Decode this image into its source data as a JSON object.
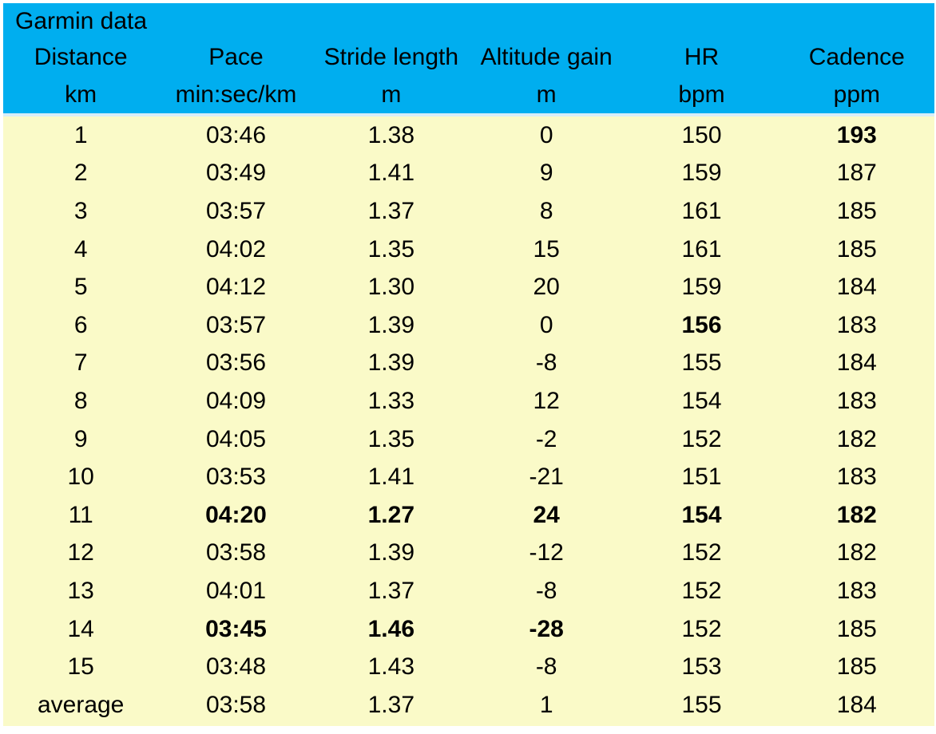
{
  "colors": {
    "header_bg": "#00AEEF",
    "body_bg": "#FAFAC8",
    "text": "#000000",
    "page_bg": "#FFFFFF"
  },
  "chart_data": {
    "type": "table",
    "title": "Garmin data",
    "columns": [
      "Distance",
      "Pace",
      "Stride length",
      "Altitude gain",
      "HR",
      "Cadence"
    ],
    "units": [
      "km",
      "min:sec/km",
      "m",
      "m",
      "bpm",
      "ppm"
    ],
    "rows": [
      {
        "cells": [
          "1",
          "03:46",
          "1.38",
          "0",
          "150",
          "193"
        ],
        "bold": [
          false,
          false,
          false,
          false,
          false,
          true
        ]
      },
      {
        "cells": [
          "2",
          "03:49",
          "1.41",
          "9",
          "159",
          "187"
        ],
        "bold": [
          false,
          false,
          false,
          false,
          false,
          false
        ]
      },
      {
        "cells": [
          "3",
          "03:57",
          "1.37",
          "8",
          "161",
          "185"
        ],
        "bold": [
          false,
          false,
          false,
          false,
          false,
          false
        ]
      },
      {
        "cells": [
          "4",
          "04:02",
          "1.35",
          "15",
          "161",
          "185"
        ],
        "bold": [
          false,
          false,
          false,
          false,
          false,
          false
        ]
      },
      {
        "cells": [
          "5",
          "04:12",
          "1.30",
          "20",
          "159",
          "184"
        ],
        "bold": [
          false,
          false,
          false,
          false,
          false,
          false
        ]
      },
      {
        "cells": [
          "6",
          "03:57",
          "1.39",
          "0",
          "156",
          "183"
        ],
        "bold": [
          false,
          false,
          false,
          false,
          true,
          false
        ]
      },
      {
        "cells": [
          "7",
          "03:56",
          "1.39",
          "-8",
          "155",
          "184"
        ],
        "bold": [
          false,
          false,
          false,
          false,
          false,
          false
        ]
      },
      {
        "cells": [
          "8",
          "04:09",
          "1.33",
          "12",
          "154",
          "183"
        ],
        "bold": [
          false,
          false,
          false,
          false,
          false,
          false
        ]
      },
      {
        "cells": [
          "9",
          "04:05",
          "1.35",
          "-2",
          "152",
          "182"
        ],
        "bold": [
          false,
          false,
          false,
          false,
          false,
          false
        ]
      },
      {
        "cells": [
          "10",
          "03:53",
          "1.41",
          "-21",
          "151",
          "183"
        ],
        "bold": [
          false,
          false,
          false,
          false,
          false,
          false
        ]
      },
      {
        "cells": [
          "11",
          "04:20",
          "1.27",
          "24",
          "154",
          "182"
        ],
        "bold": [
          false,
          true,
          true,
          true,
          true,
          true
        ]
      },
      {
        "cells": [
          "12",
          "03:58",
          "1.39",
          "-12",
          "152",
          "182"
        ],
        "bold": [
          false,
          false,
          false,
          false,
          false,
          false
        ]
      },
      {
        "cells": [
          "13",
          "04:01",
          "1.37",
          "-8",
          "152",
          "183"
        ],
        "bold": [
          false,
          false,
          false,
          false,
          false,
          false
        ]
      },
      {
        "cells": [
          "14",
          "03:45",
          "1.46",
          "-28",
          "152",
          "185"
        ],
        "bold": [
          false,
          true,
          true,
          true,
          false,
          false
        ]
      },
      {
        "cells": [
          "15",
          "03:48",
          "1.43",
          "-8",
          "153",
          "185"
        ],
        "bold": [
          false,
          false,
          false,
          false,
          false,
          false
        ]
      },
      {
        "cells": [
          "average",
          "03:58",
          "1.37",
          "1",
          "155",
          "184"
        ],
        "bold": [
          false,
          false,
          false,
          false,
          false,
          false
        ]
      }
    ]
  }
}
